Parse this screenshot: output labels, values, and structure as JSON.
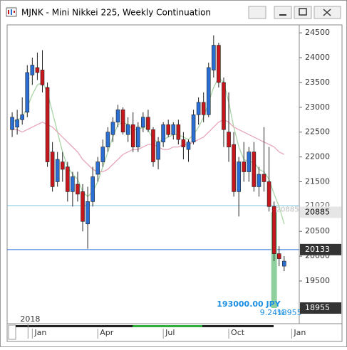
{
  "window": {
    "title": "MJNK - Mini Nikkei 225, Weekly Continuation"
  },
  "chart_data": {
    "type": "candlestick",
    "up_color": "#2a6fd6",
    "down_color": "#c8161d",
    "open": [
      22550,
      22600,
      22750,
      22900,
      23650,
      23800,
      23750,
      23400,
      22100,
      21500,
      21900,
      21800,
      21300,
      21450,
      21300,
      20650,
      21100,
      21650,
      21900,
      22200,
      22450,
      22700,
      22950,
      22450,
      22650,
      22200,
      22600,
      22800,
      22550,
      21950,
      22300,
      22650,
      22450,
      22650,
      22350,
      22150,
      22300,
      22850,
      23100,
      22850,
      23750,
      24250,
      23500,
      22500,
      22250,
      21300,
      21900,
      21700,
      22100,
      21400,
      21650,
      21500,
      21000,
      20050,
      19800
    ],
    "high": [
      22900,
      22950,
      23200,
      23850,
      24000,
      24100,
      24150,
      23500,
      22300,
      22100,
      22100,
      21900,
      21700,
      21700,
      21450,
      21400,
      21800,
      22000,
      22350,
      22600,
      22800,
      23050,
      23000,
      22800,
      22900,
      22700,
      22900,
      22950,
      22600,
      22400,
      22700,
      22750,
      22700,
      22750,
      22500,
      22350,
      22950,
      23200,
      23300,
      23900,
      24450,
      24300,
      23600,
      23300,
      22500,
      22000,
      22300,
      22200,
      22300,
      21800,
      22600,
      22200,
      21100,
      20200,
      20000
    ],
    "low": [
      22400,
      22450,
      22650,
      22800,
      23450,
      23550,
      23300,
      21800,
      21300,
      21400,
      21500,
      21100,
      21000,
      21100,
      20500,
      20150,
      21000,
      21500,
      21800,
      22100,
      22300,
      22600,
      22450,
      22300,
      22100,
      22100,
      22500,
      22500,
      21800,
      21750,
      22200,
      22400,
      22350,
      22250,
      21950,
      21900,
      22250,
      22650,
      22700,
      22800,
      23600,
      23400,
      22200,
      21900,
      21200,
      20800,
      21500,
      21500,
      21300,
      21200,
      21300,
      20900,
      19900,
      19800,
      19700
    ],
    "close": [
      22800,
      22750,
      22850,
      23700,
      23850,
      23700,
      23450,
      21900,
      21400,
      21950,
      21750,
      21300,
      21600,
      21250,
      20700,
      21100,
      21600,
      21900,
      22200,
      22500,
      22700,
      22950,
      22500,
      22650,
      22200,
      22600,
      22800,
      22550,
      21900,
      22300,
      22650,
      22450,
      22650,
      22350,
      22200,
      22300,
      22850,
      23100,
      22850,
      23800,
      24250,
      23500,
      22550,
      22200,
      21300,
      21900,
      21700,
      22100,
      21400,
      21650,
      21500,
      21000,
      20050,
      19950,
      19900
    ],
    "lines": [
      {
        "color": "#a8d5a8",
        "values": [
          22700,
          22750,
          22800,
          23000,
          23250,
          23450,
          23500,
          23300,
          22900,
          22500,
          22100,
          21800,
          21650,
          21550,
          21300,
          21200,
          21300,
          21500,
          21800,
          22100,
          22400,
          22650,
          22700,
          22650,
          22550,
          22550,
          22600,
          22550,
          22350,
          22300,
          22350,
          22400,
          22450,
          22450,
          22400,
          22350,
          22450,
          22600,
          22800,
          23100,
          23400,
          23600,
          23500,
          23100,
          22600,
          22200,
          21950,
          21900,
          21900,
          21750,
          21700,
          21550,
          21250,
          21000,
          20650
        ]
      },
      {
        "color": "#e7a6b8",
        "values": [
          22550,
          22550,
          22500,
          22550,
          22600,
          22650,
          22700,
          22650,
          22600,
          22500,
          22400,
          22300,
          22200,
          22100,
          21950,
          21850,
          21750,
          21700,
          21700,
          21750,
          21850,
          21950,
          22050,
          22100,
          22150,
          22150,
          22200,
          22250,
          22250,
          22200,
          22150,
          22150,
          22200,
          22200,
          22250,
          22250,
          22300,
          22350,
          22400,
          22500,
          22600,
          22700,
          22750,
          22700,
          22600,
          22550,
          22500,
          22450,
          22400,
          22350,
          22300,
          22250,
          22200,
          22100,
          22050
        ]
      }
    ],
    "xlim": [
      -1,
      57
    ],
    "ylim": [
      18640,
      24660
    ],
    "yticks": [
      19500,
      20000,
      20500,
      21500,
      22000,
      22500,
      23000,
      23500,
      24000,
      24500
    ],
    "xticks": [
      {
        "value": 4,
        "label": "Jan"
      },
      {
        "value": 17,
        "label": "Apr"
      },
      {
        "value": 30,
        "label": "Jul"
      },
      {
        "value": 43,
        "label": "Oct"
      },
      {
        "value": 55.5,
        "label": "Jan"
      }
    ],
    "year_label": {
      "value": 4,
      "label": "2018"
    },
    "price_lines": [
      {
        "value": 21020,
        "color": "#7fc4e0"
      },
      {
        "value": 20133,
        "color": "#2a6fd6"
      }
    ],
    "price_markers": [
      {
        "value": 20885,
        "bg": "#e6e6e6",
        "fg": "#000000"
      },
      {
        "value": 20133,
        "bg": "#333333",
        "fg": "#ffffff"
      },
      {
        "value": 18955,
        "bg": "#333333",
        "fg": "#ffffff"
      }
    ],
    "measure": {
      "index": 52,
      "from": 20885,
      "to": 18955,
      "color": "#8fd19e",
      "amount": "193000.00 JPY",
      "percent": "9.24%"
    }
  }
}
